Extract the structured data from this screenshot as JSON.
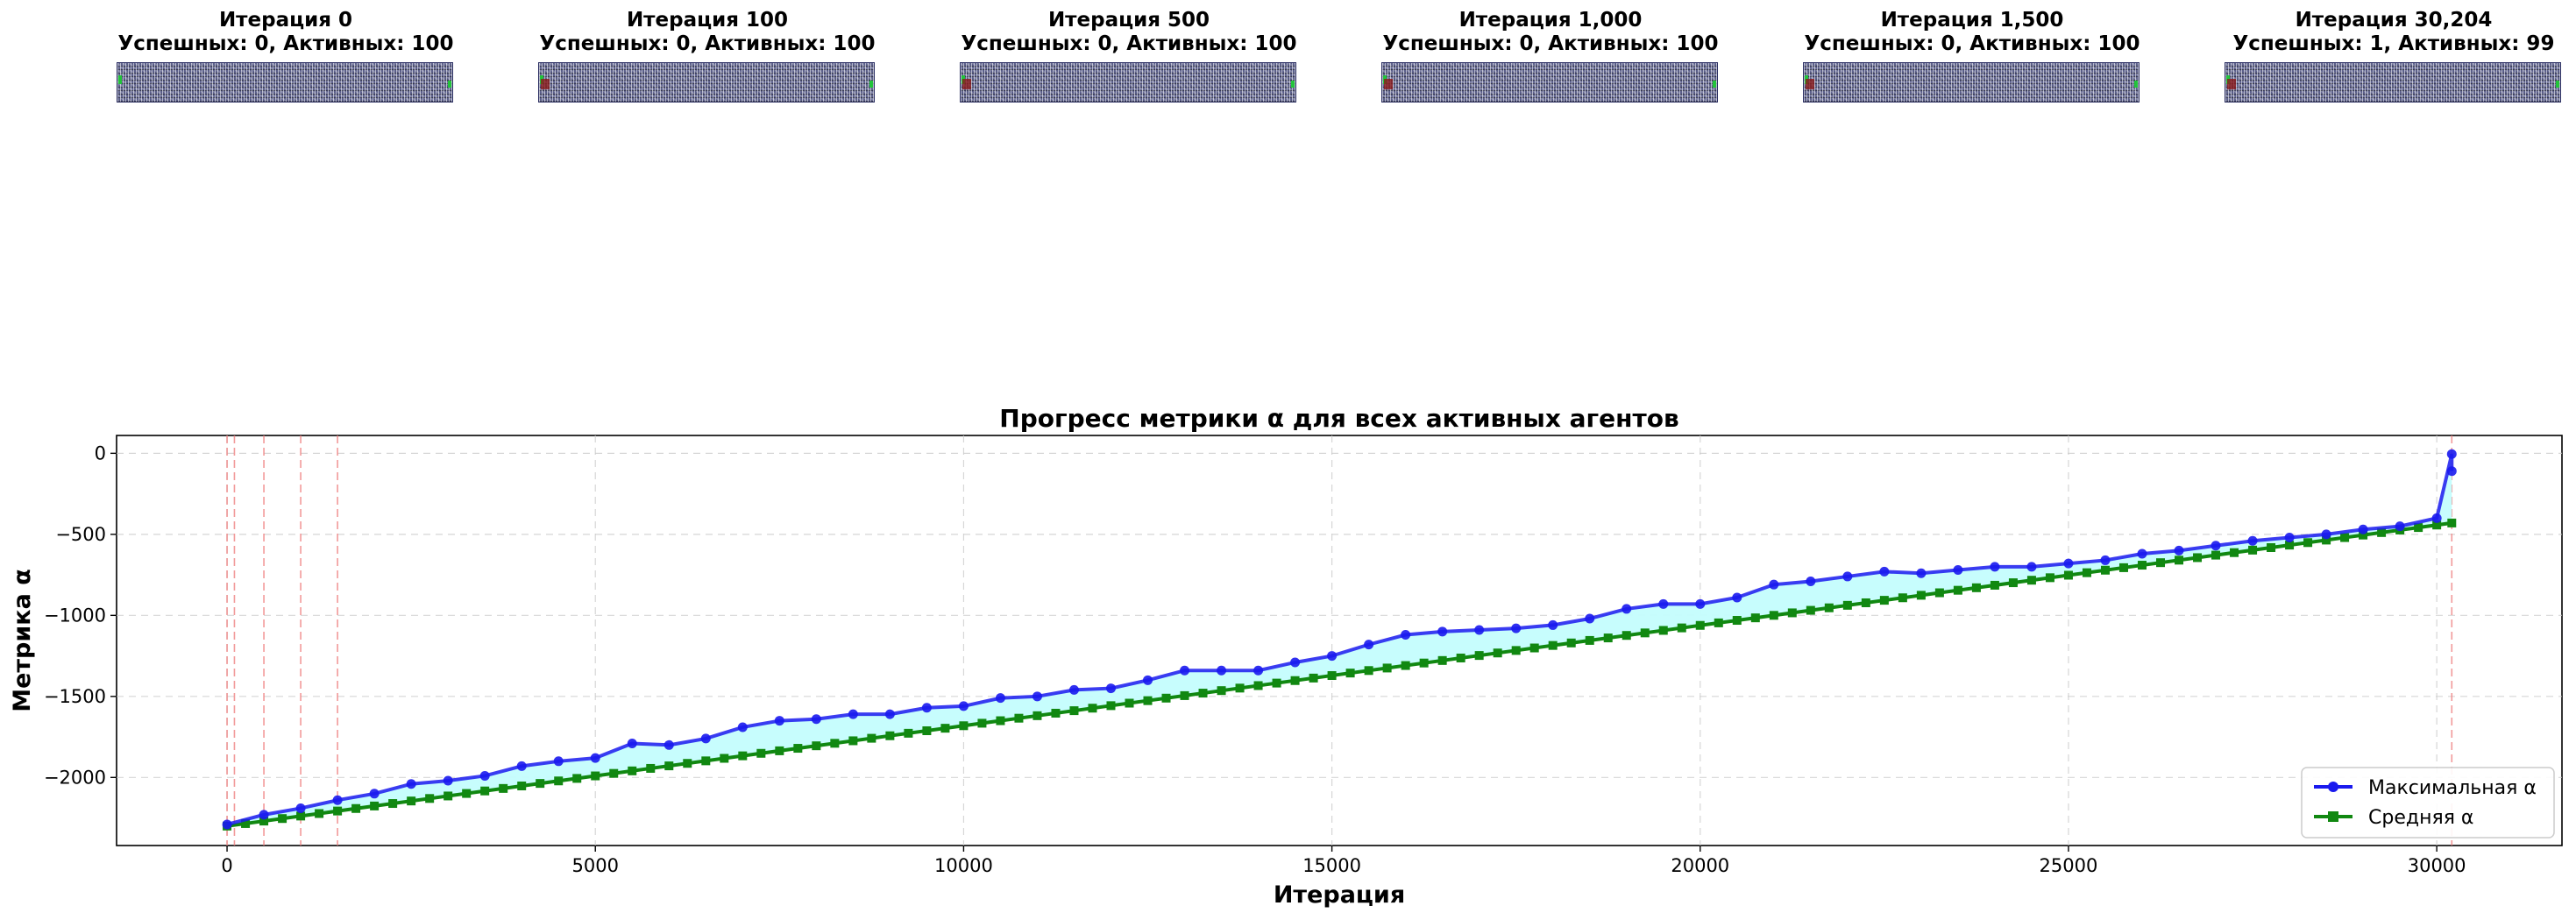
{
  "panels": [
    {
      "title": "Итерация 0",
      "subtitle": "Успешных: 0, Активных: 100"
    },
    {
      "title": "Итерация 100",
      "subtitle": "Успешных: 0, Активных: 100"
    },
    {
      "title": "Итерация 500",
      "subtitle": "Успешных: 0, Активных: 100"
    },
    {
      "title": "Итерация 1,000",
      "subtitle": "Успешных: 0, Активных: 100"
    },
    {
      "title": "Итерация 1,500",
      "subtitle": "Успешных: 0, Активных: 100"
    },
    {
      "title": "Итерация 30,204",
      "subtitle": "Успешных: 1, Активных: 99"
    }
  ],
  "chart_data": {
    "type": "line",
    "title": "Прогресс метрики α для всех активных агентов",
    "xlabel": "Итерация",
    "ylabel": "Метрика α",
    "xlim": [
      -1500,
      31700
    ],
    "ylim": [
      -2420,
      110
    ],
    "xticks": [
      0,
      5000,
      10000,
      15000,
      20000,
      25000,
      30000
    ],
    "yticks": [
      0,
      -500,
      -1000,
      -1500,
      -2000
    ],
    "ytick_labels": [
      "0",
      "−500",
      "−1000",
      "−1500",
      "−2000"
    ],
    "grid": true,
    "legend_position": "lower-right",
    "snapshot_lines": [
      0,
      100,
      500,
      1000,
      1500,
      30204
    ],
    "colors": {
      "max": "#1a1aee",
      "mean": "#118811",
      "fill": "#c4fdfd",
      "snapshot": "#f08080"
    },
    "series": [
      {
        "name": "Максимальная α",
        "marker": "circle",
        "x": [
          0,
          500,
          1000,
          1500,
          2000,
          2500,
          3000,
          3500,
          4000,
          4500,
          5000,
          5500,
          6000,
          6500,
          7000,
          7500,
          8000,
          8500,
          9000,
          9500,
          10000,
          10500,
          11000,
          11500,
          12000,
          12500,
          13000,
          13500,
          14000,
          14500,
          15000,
          15500,
          16000,
          16500,
          17000,
          17500,
          18000,
          18500,
          19000,
          19500,
          20000,
          20500,
          21000,
          21500,
          22000,
          22500,
          23000,
          23500,
          24000,
          24500,
          25000,
          25500,
          26000,
          26500,
          27000,
          27500,
          28000,
          28500,
          29000,
          29500,
          30000,
          30204,
          30204
        ],
        "values": [
          -2290,
          -2230,
          -2190,
          -2140,
          -2100,
          -2040,
          -2020,
          -1990,
          -1930,
          -1900,
          -1880,
          -1790,
          -1800,
          -1760,
          -1690,
          -1650,
          -1640,
          -1610,
          -1610,
          -1570,
          -1560,
          -1510,
          -1500,
          -1460,
          -1450,
          -1400,
          -1340,
          -1340,
          -1340,
          -1290,
          -1250,
          -1180,
          -1120,
          -1100,
          -1090,
          -1080,
          -1060,
          -1020,
          -960,
          -930,
          -930,
          -890,
          -810,
          -790,
          -760,
          -730,
          -740,
          -720,
          -700,
          -700,
          -680,
          -660,
          -620,
          -600,
          -570,
          -540,
          -520,
          -500,
          -470,
          -450,
          -400,
          -5,
          -110
        ]
      },
      {
        "name": "Средняя α",
        "marker": "square",
        "x": [
          0,
          30204
        ],
        "values": [
          -2300,
          -430
        ]
      }
    ]
  }
}
